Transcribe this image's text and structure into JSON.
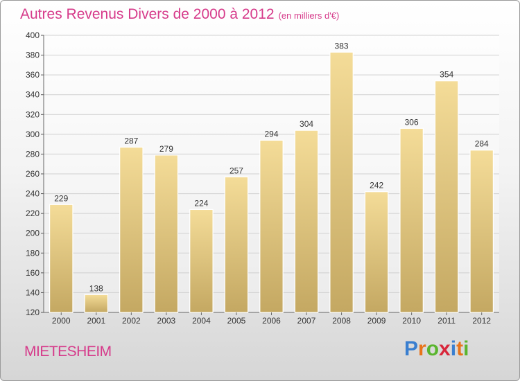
{
  "header": {
    "title": "Autres Revenus Divers de 2000 à 2012",
    "unit": "(en milliers d'€)"
  },
  "footer": {
    "city": "MIETESHEIM",
    "brand_letters": [
      "P",
      "r",
      "o",
      "x",
      "i",
      "t",
      "i"
    ],
    "brand_colors": [
      "#3a7fd0",
      "#e8741a",
      "#5ab52e",
      "#d8263a",
      "#3a7fd0",
      "#e8741a",
      "#5ab52e"
    ]
  },
  "colors": {
    "accent": "#d63a8a",
    "bar_top": "#f4dc98",
    "bar_bottom": "#c4a862",
    "grid": "#d0d0d0"
  },
  "chart_data": {
    "type": "bar",
    "title": "Autres Revenus Divers de 2000 à 2012",
    "categories": [
      "2000",
      "2001",
      "2002",
      "2003",
      "2004",
      "2005",
      "2006",
      "2007",
      "2008",
      "2009",
      "2010",
      "2011",
      "2012"
    ],
    "values": [
      229,
      138,
      287,
      279,
      224,
      257,
      294,
      304,
      383,
      242,
      306,
      354,
      284
    ],
    "ylim": [
      120,
      400
    ],
    "yticks": [
      120,
      140,
      160,
      180,
      200,
      220,
      240,
      260,
      280,
      300,
      320,
      340,
      360,
      380,
      400
    ],
    "grid": true,
    "xlabel": "",
    "ylabel": ""
  }
}
